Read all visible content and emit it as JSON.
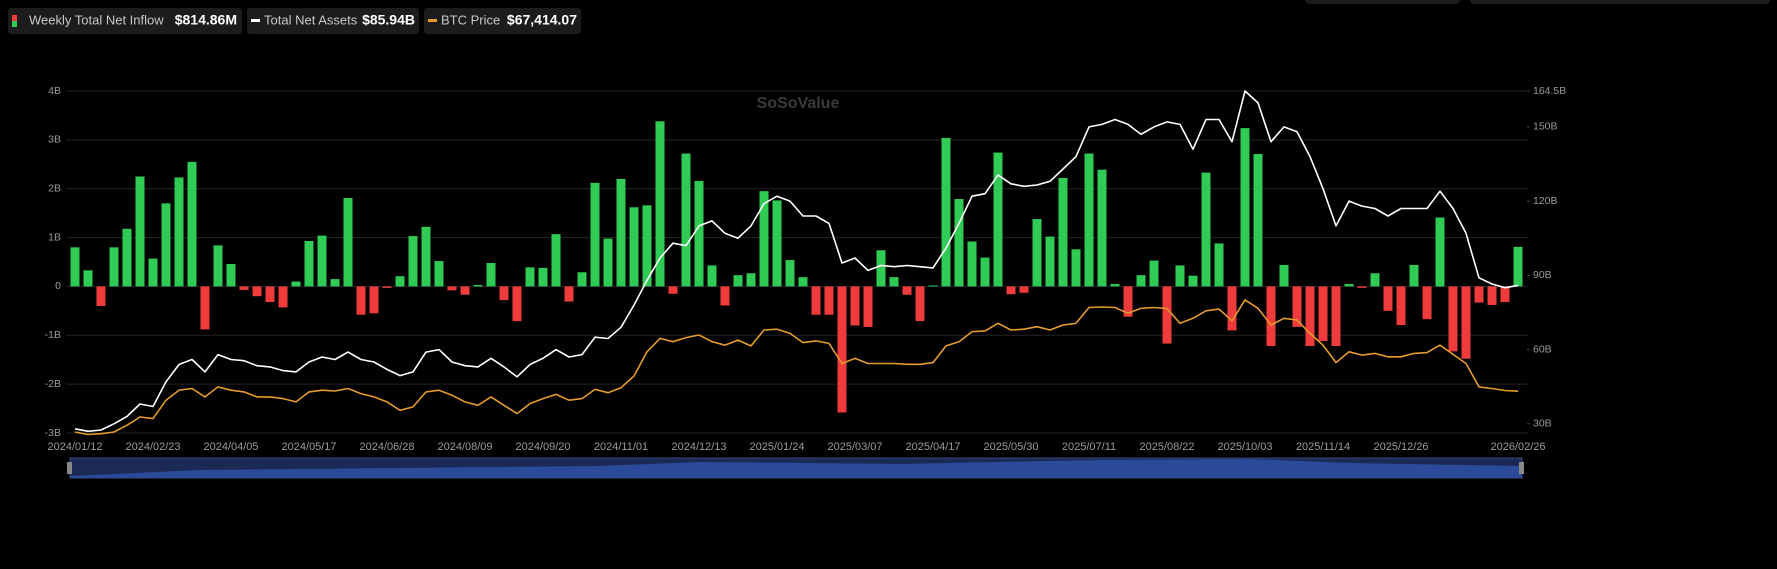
{
  "chart_data": {
    "type": "combo",
    "watermark": "SoSoValue",
    "categories": [
      "2024/01/12",
      null,
      null,
      null,
      null,
      null,
      "2024/02/23",
      null,
      null,
      null,
      null,
      null,
      "2024/04/05",
      null,
      null,
      null,
      null,
      null,
      "2024/05/17",
      null,
      null,
      null,
      null,
      null,
      "2024/06/28",
      null,
      null,
      null,
      null,
      null,
      "2024/08/09",
      null,
      null,
      null,
      null,
      null,
      "2024/09/20",
      null,
      null,
      null,
      null,
      null,
      "2024/11/01",
      null,
      null,
      null,
      null,
      null,
      "2024/12/13",
      null,
      null,
      null,
      null,
      null,
      "2025/01/24",
      null,
      null,
      null,
      null,
      null,
      "2025/03/07",
      null,
      null,
      null,
      null,
      null,
      "2025/04/17",
      null,
      null,
      null,
      null,
      null,
      "2025/05/30",
      null,
      null,
      null,
      null,
      null,
      "2025/07/11",
      null,
      null,
      null,
      null,
      null,
      "2025/08/22",
      null,
      null,
      null,
      null,
      null,
      "2025/10/03",
      null,
      null,
      null,
      null,
      null,
      "2025/11/14",
      null,
      null,
      null,
      null,
      null,
      "2025/12/26",
      null,
      null,
      null,
      null,
      null,
      null,
      null,
      null,
      "2026/02/26"
    ],
    "series": [
      {
        "name": "Weekly Total Net Inflow",
        "type": "bar",
        "latest_label": "$814.86M",
        "color": "#2fcb55",
        "negative_color": "#ef3b3b",
        "values": [
          0.8,
          0.33,
          -0.4,
          0.8,
          1.18,
          2.25,
          0.57,
          1.7,
          2.23,
          2.55,
          -0.88,
          0.84,
          0.46,
          -0.07,
          -0.2,
          -0.32,
          -0.43,
          0.1,
          0.93,
          1.04,
          0.15,
          1.81,
          -0.58,
          -0.55,
          -0.03,
          0.21,
          1.03,
          1.22,
          0.52,
          -0.08,
          -0.17,
          0.03,
          0.48,
          -0.28,
          -0.71,
          0.39,
          0.38,
          1.07,
          -0.31,
          0.29,
          2.12,
          0.98,
          2.2,
          1.62,
          1.66,
          3.38,
          -0.15,
          2.72,
          2.16,
          0.43,
          -0.39,
          0.23,
          0.27,
          1.95,
          1.76,
          0.54,
          0.19,
          -0.58,
          -0.58,
          -2.58,
          -0.8,
          -0.83,
          0.74,
          0.19,
          -0.17,
          -0.71,
          0.02,
          3.04,
          1.79,
          0.92,
          0.59,
          2.74,
          -0.16,
          -0.13,
          1.38,
          1.02,
          2.22,
          0.76,
          2.72,
          2.39,
          0.05,
          -0.62,
          0.23,
          0.53,
          -1.17,
          0.43,
          0.22,
          2.33,
          0.88,
          -0.9,
          3.24,
          2.71,
          -1.22,
          0.44,
          -0.83,
          -1.22,
          -1.12,
          -1.22,
          0.05,
          -0.03,
          0.27,
          -0.5,
          -0.79,
          0.44,
          -0.67,
          1.41,
          -1.33,
          -1.48,
          -0.33,
          -0.38,
          -0.32,
          0.81
        ]
      },
      {
        "name": "Total Net Assets",
        "type": "line",
        "axis": "y2",
        "latest_label": "$85.94B",
        "color": "#ffffff",
        "values": [
          28,
          27,
          27.5,
          30,
          33,
          38,
          37,
          47,
          54,
          56,
          51,
          58,
          56,
          55.5,
          53.5,
          53,
          51.5,
          51,
          55,
          57,
          56,
          59,
          56,
          55,
          52,
          49.5,
          51,
          59,
          60,
          55,
          53.5,
          53,
          56.5,
          53,
          49,
          54,
          56.5,
          60,
          57,
          58,
          65,
          64.5,
          69,
          78,
          88,
          97,
          103,
          102,
          110,
          112,
          107,
          105,
          110,
          119,
          122,
          120,
          114,
          114,
          111,
          95,
          97,
          92,
          94,
          93.5,
          94,
          93.5,
          93,
          101,
          111,
          122,
          123,
          130.5,
          127,
          126,
          126.5,
          128,
          133,
          138,
          150,
          151,
          153,
          151,
          147,
          150,
          152,
          151,
          141,
          153,
          153,
          144,
          164.5,
          159.7,
          144,
          150,
          148,
          138,
          125,
          110,
          120,
          118,
          117,
          114,
          117,
          117,
          117,
          124,
          117,
          107,
          89,
          86.5,
          85,
          85.94
        ]
      },
      {
        "name": "BTC Price",
        "type": "line",
        "axis": "y3",
        "latest_label": "$67,414.07",
        "color": "#e59a2c",
        "values": [
          43000,
          41500,
          42000,
          43000,
          47000,
          52000,
          51000,
          62000,
          68000,
          69000,
          64000,
          70000,
          68000,
          67000,
          64000,
          64000,
          63000,
          61000,
          67000,
          68000,
          67500,
          69000,
          66000,
          64000,
          61000,
          56000,
          58000,
          67000,
          68000,
          65000,
          61000,
          59000,
          64000,
          59000,
          54000,
          60000,
          63000,
          65500,
          62000,
          63000,
          68500,
          66500,
          69500,
          76500,
          91000,
          99000,
          97000,
          99500,
          101000,
          97000,
          95000,
          98000,
          94500,
          104000,
          104500,
          102000,
          96500,
          97500,
          96000,
          84000,
          87000,
          84000,
          84000,
          84000,
          83500,
          83500,
          84500,
          94500,
          97000,
          103000,
          103500,
          108000,
          104000,
          104500,
          106000,
          104000,
          107000,
          108000,
          117500,
          117800,
          117500,
          114000,
          117000,
          117500,
          116800,
          108000,
          111000,
          115500,
          116500,
          109500,
          122000,
          117000,
          107000,
          111000,
          110000,
          102000,
          95000,
          84500,
          91000,
          89000,
          90000,
          88000,
          88000,
          90000,
          90500,
          95000,
          89500,
          84000,
          70000,
          69000,
          67800,
          67414.07
        ]
      }
    ],
    "ylim": [
      -3,
      4
    ],
    "yticks": [
      {
        "value": -3,
        "label": "-3B"
      },
      {
        "value": -2,
        "label": "-2B"
      },
      {
        "value": -1,
        "label": "-1B"
      },
      0,
      {
        "value": 1,
        "label": "1B"
      },
      {
        "value": 2,
        "label": "2B"
      },
      {
        "value": 3,
        "label": "3B"
      },
      {
        "value": 4,
        "label": "4B"
      }
    ],
    "y2lim": [
      26.3,
      164.5
    ],
    "y2ticks": [
      {
        "value": 30,
        "label": "30B"
      },
      {
        "value": 60,
        "label": "60B"
      },
      {
        "value": 90,
        "label": "90B"
      },
      {
        "value": 120,
        "label": "120B"
      },
      {
        "value": 150,
        "label": "150B"
      },
      {
        "value": 164.5,
        "label": "164.5B"
      }
    ],
    "y3lim": [
      42400,
      247000
    ],
    "grid": true
  }
}
